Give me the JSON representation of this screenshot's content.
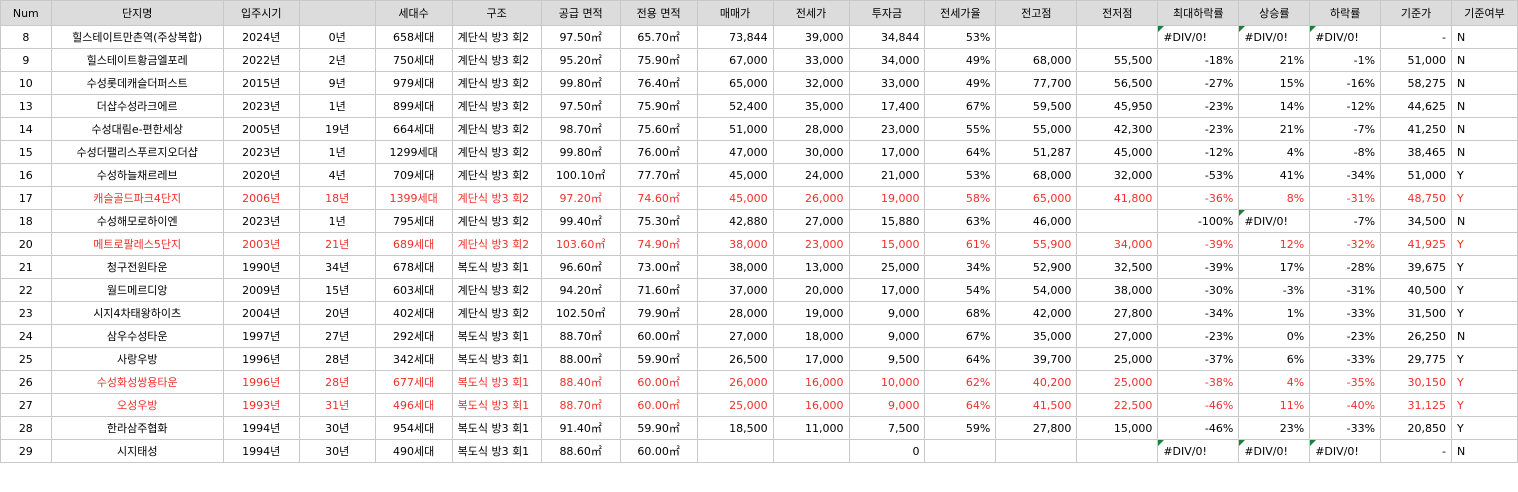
{
  "columns": [
    "Num",
    "단지명",
    "입주시기",
    "",
    "세대수",
    "구조",
    "공급 면적",
    "전용 면적",
    "매매가",
    "전세가",
    "투자금",
    "전세가율",
    "전고점",
    "전저점",
    "최대하락률",
    "상승률",
    "하락률",
    "기준가",
    "기준여부"
  ],
  "rows": [
    {
      "num": "8",
      "name": "힐스테이트만촌역(주상복합)",
      "year": "2024년",
      "age": "0년",
      "units": "658세대",
      "structure": "계단식 방3 회2",
      "supply": "97.50㎡",
      "exclusive": "65.70㎡",
      "sale": "73,844",
      "jeonse": "39,000",
      "invest": "34,844",
      "ratio": "53%",
      "high": "",
      "low": "",
      "maxdrop": "#DIV/0!",
      "rise": "#DIV/0!",
      "drop": "#DIV/0!",
      "base": "-",
      "flag": "N",
      "highlight": false
    },
    {
      "num": "9",
      "name": "힐스테이트황금엘포레",
      "year": "2022년",
      "age": "2년",
      "units": "750세대",
      "structure": "계단식 방3 회2",
      "supply": "95.20㎡",
      "exclusive": "75.90㎡",
      "sale": "67,000",
      "jeonse": "33,000",
      "invest": "34,000",
      "ratio": "49%",
      "high": "68,000",
      "low": "55,500",
      "maxdrop": "-18%",
      "rise": "21%",
      "drop": "-1%",
      "base": "51,000",
      "flag": "N",
      "highlight": false
    },
    {
      "num": "10",
      "name": "수성롯데캐슬더퍼스트",
      "year": "2015년",
      "age": "9년",
      "units": "979세대",
      "structure": "계단식 방3 회2",
      "supply": "99.80㎡",
      "exclusive": "76.40㎡",
      "sale": "65,000",
      "jeonse": "32,000",
      "invest": "33,000",
      "ratio": "49%",
      "high": "77,700",
      "low": "56,500",
      "maxdrop": "-27%",
      "rise": "15%",
      "drop": "-16%",
      "base": "58,275",
      "flag": "N",
      "highlight": false
    },
    {
      "num": "13",
      "name": "더샵수성라크에르",
      "year": "2023년",
      "age": "1년",
      "units": "899세대",
      "structure": "계단식 방3 회2",
      "supply": "97.50㎡",
      "exclusive": "75.90㎡",
      "sale": "52,400",
      "jeonse": "35,000",
      "invest": "17,400",
      "ratio": "67%",
      "high": "59,500",
      "low": "45,950",
      "maxdrop": "-23%",
      "rise": "14%",
      "drop": "-12%",
      "base": "44,625",
      "flag": "N",
      "highlight": false
    },
    {
      "num": "14",
      "name": "수성대림e-편한세상",
      "year": "2005년",
      "age": "19년",
      "units": "664세대",
      "structure": "계단식 방3 회2",
      "supply": "98.70㎡",
      "exclusive": "75.60㎡",
      "sale": "51,000",
      "jeonse": "28,000",
      "invest": "23,000",
      "ratio": "55%",
      "high": "55,000",
      "low": "42,300",
      "maxdrop": "-23%",
      "rise": "21%",
      "drop": "-7%",
      "base": "41,250",
      "flag": "N",
      "highlight": false
    },
    {
      "num": "15",
      "name": "수성더팰리스푸르지오더샵",
      "year": "2023년",
      "age": "1년",
      "units": "1299세대",
      "structure": "계단식 방3 회2",
      "supply": "99.80㎡",
      "exclusive": "76.00㎡",
      "sale": "47,000",
      "jeonse": "30,000",
      "invest": "17,000",
      "ratio": "64%",
      "high": "51,287",
      "low": "45,000",
      "maxdrop": "-12%",
      "rise": "4%",
      "drop": "-8%",
      "base": "38,465",
      "flag": "N",
      "highlight": false
    },
    {
      "num": "16",
      "name": "수성하늘채르레브",
      "year": "2020년",
      "age": "4년",
      "units": "709세대",
      "structure": "계단식 방3 회2",
      "supply": "100.10㎡",
      "exclusive": "77.70㎡",
      "sale": "45,000",
      "jeonse": "24,000",
      "invest": "21,000",
      "ratio": "53%",
      "high": "68,000",
      "low": "32,000",
      "maxdrop": "-53%",
      "rise": "41%",
      "drop": "-34%",
      "base": "51,000",
      "flag": "Y",
      "highlight": false
    },
    {
      "num": "17",
      "name": "캐슬골드파크4단지",
      "year": "2006년",
      "age": "18년",
      "units": "1399세대",
      "structure": "계단식 방3 회2",
      "supply": "97.20㎡",
      "exclusive": "74.60㎡",
      "sale": "45,000",
      "jeonse": "26,000",
      "invest": "19,000",
      "ratio": "58%",
      "high": "65,000",
      "low": "41,800",
      "maxdrop": "-36%",
      "rise": "8%",
      "drop": "-31%",
      "base": "48,750",
      "flag": "Y",
      "highlight": true
    },
    {
      "num": "18",
      "name": "수성해모로하이엔",
      "year": "2023년",
      "age": "1년",
      "units": "795세대",
      "structure": "계단식 방3 회2",
      "supply": "99.40㎡",
      "exclusive": "75.30㎡",
      "sale": "42,880",
      "jeonse": "27,000",
      "invest": "15,880",
      "ratio": "63%",
      "high": "46,000",
      "low": "",
      "maxdrop": "-100%",
      "rise": "#DIV/0!",
      "drop": "-7%",
      "base": "34,500",
      "flag": "N",
      "highlight": false
    },
    {
      "num": "20",
      "name": "메트로팔레스5단지",
      "year": "2003년",
      "age": "21년",
      "units": "689세대",
      "structure": "계단식 방3 회2",
      "supply": "103.60㎡",
      "exclusive": "74.90㎡",
      "sale": "38,000",
      "jeonse": "23,000",
      "invest": "15,000",
      "ratio": "61%",
      "high": "55,900",
      "low": "34,000",
      "maxdrop": "-39%",
      "rise": "12%",
      "drop": "-32%",
      "base": "41,925",
      "flag": "Y",
      "highlight": true
    },
    {
      "num": "21",
      "name": "청구전원타운",
      "year": "1990년",
      "age": "34년",
      "units": "678세대",
      "structure": "복도식 방3 회1",
      "supply": "96.60㎡",
      "exclusive": "73.00㎡",
      "sale": "38,000",
      "jeonse": "13,000",
      "invest": "25,000",
      "ratio": "34%",
      "high": "52,900",
      "low": "32,500",
      "maxdrop": "-39%",
      "rise": "17%",
      "drop": "-28%",
      "base": "39,675",
      "flag": "Y",
      "highlight": false
    },
    {
      "num": "22",
      "name": "월드메르디앙",
      "year": "2009년",
      "age": "15년",
      "units": "603세대",
      "structure": "계단식 방3 회2",
      "supply": "94.20㎡",
      "exclusive": "71.60㎡",
      "sale": "37,000",
      "jeonse": "20,000",
      "invest": "17,000",
      "ratio": "54%",
      "high": "54,000",
      "low": "38,000",
      "maxdrop": "-30%",
      "rise": "-3%",
      "drop": "-31%",
      "base": "40,500",
      "flag": "Y",
      "highlight": false
    },
    {
      "num": "23",
      "name": "시지4차태왕하이츠",
      "year": "2004년",
      "age": "20년",
      "units": "402세대",
      "structure": "계단식 방3 회2",
      "supply": "102.50㎡",
      "exclusive": "79.90㎡",
      "sale": "28,000",
      "jeonse": "19,000",
      "invest": "9,000",
      "ratio": "68%",
      "high": "42,000",
      "low": "27,800",
      "maxdrop": "-34%",
      "rise": "1%",
      "drop": "-33%",
      "base": "31,500",
      "flag": "Y",
      "highlight": false
    },
    {
      "num": "24",
      "name": "삼우수성타운",
      "year": "1997년",
      "age": "27년",
      "units": "292세대",
      "structure": "복도식 방3 회1",
      "supply": "88.70㎡",
      "exclusive": "60.00㎡",
      "sale": "27,000",
      "jeonse": "18,000",
      "invest": "9,000",
      "ratio": "67%",
      "high": "35,000",
      "low": "27,000",
      "maxdrop": "-23%",
      "rise": "0%",
      "drop": "-23%",
      "base": "26,250",
      "flag": "N",
      "highlight": false
    },
    {
      "num": "25",
      "name": "사랑우방",
      "year": "1996년",
      "age": "28년",
      "units": "342세대",
      "structure": "복도식 방3 회1",
      "supply": "88.00㎡",
      "exclusive": "59.90㎡",
      "sale": "26,500",
      "jeonse": "17,000",
      "invest": "9,500",
      "ratio": "64%",
      "high": "39,700",
      "low": "25,000",
      "maxdrop": "-37%",
      "rise": "6%",
      "drop": "-33%",
      "base": "29,775",
      "flag": "Y",
      "highlight": false
    },
    {
      "num": "26",
      "name": "수성화성쌍용타운",
      "year": "1996년",
      "age": "28년",
      "units": "677세대",
      "structure": "복도식 방3 회1",
      "supply": "88.40㎡",
      "exclusive": "60.00㎡",
      "sale": "26,000",
      "jeonse": "16,000",
      "invest": "10,000",
      "ratio": "62%",
      "high": "40,200",
      "low": "25,000",
      "maxdrop": "-38%",
      "rise": "4%",
      "drop": "-35%",
      "base": "30,150",
      "flag": "Y",
      "highlight": true
    },
    {
      "num": "27",
      "name": "오성우방",
      "year": "1993년",
      "age": "31년",
      "units": "496세대",
      "structure": "복도식 방3 회1",
      "supply": "88.70㎡",
      "exclusive": "60.00㎡",
      "sale": "25,000",
      "jeonse": "16,000",
      "invest": "9,000",
      "ratio": "64%",
      "high": "41,500",
      "low": "22,500",
      "maxdrop": "-46%",
      "rise": "11%",
      "drop": "-40%",
      "base": "31,125",
      "flag": "Y",
      "highlight": true
    },
    {
      "num": "28",
      "name": "한라삼주협화",
      "year": "1994년",
      "age": "30년",
      "units": "954세대",
      "structure": "복도식 방3 회1",
      "supply": "91.40㎡",
      "exclusive": "59.90㎡",
      "sale": "18,500",
      "jeonse": "11,000",
      "invest": "7,500",
      "ratio": "59%",
      "high": "27,800",
      "low": "15,000",
      "maxdrop": "-46%",
      "rise": "23%",
      "drop": "-33%",
      "base": "20,850",
      "flag": "Y",
      "highlight": false
    },
    {
      "num": "29",
      "name": "시지태성",
      "year": "1994년",
      "age": "30년",
      "units": "490세대",
      "structure": "복도식 방3 회1",
      "supply": "88.60㎡",
      "exclusive": "60.00㎡",
      "sale": "",
      "jeonse": "",
      "invest": "0",
      "ratio": "",
      "high": "",
      "low": "",
      "maxdrop": "#DIV/0!",
      "rise": "#DIV/0!",
      "drop": "#DIV/0!",
      "base": "-",
      "flag": "N",
      "highlight": false
    }
  ],
  "error_flag_color": "#1a7f37",
  "highlight_color": "#f0302a"
}
